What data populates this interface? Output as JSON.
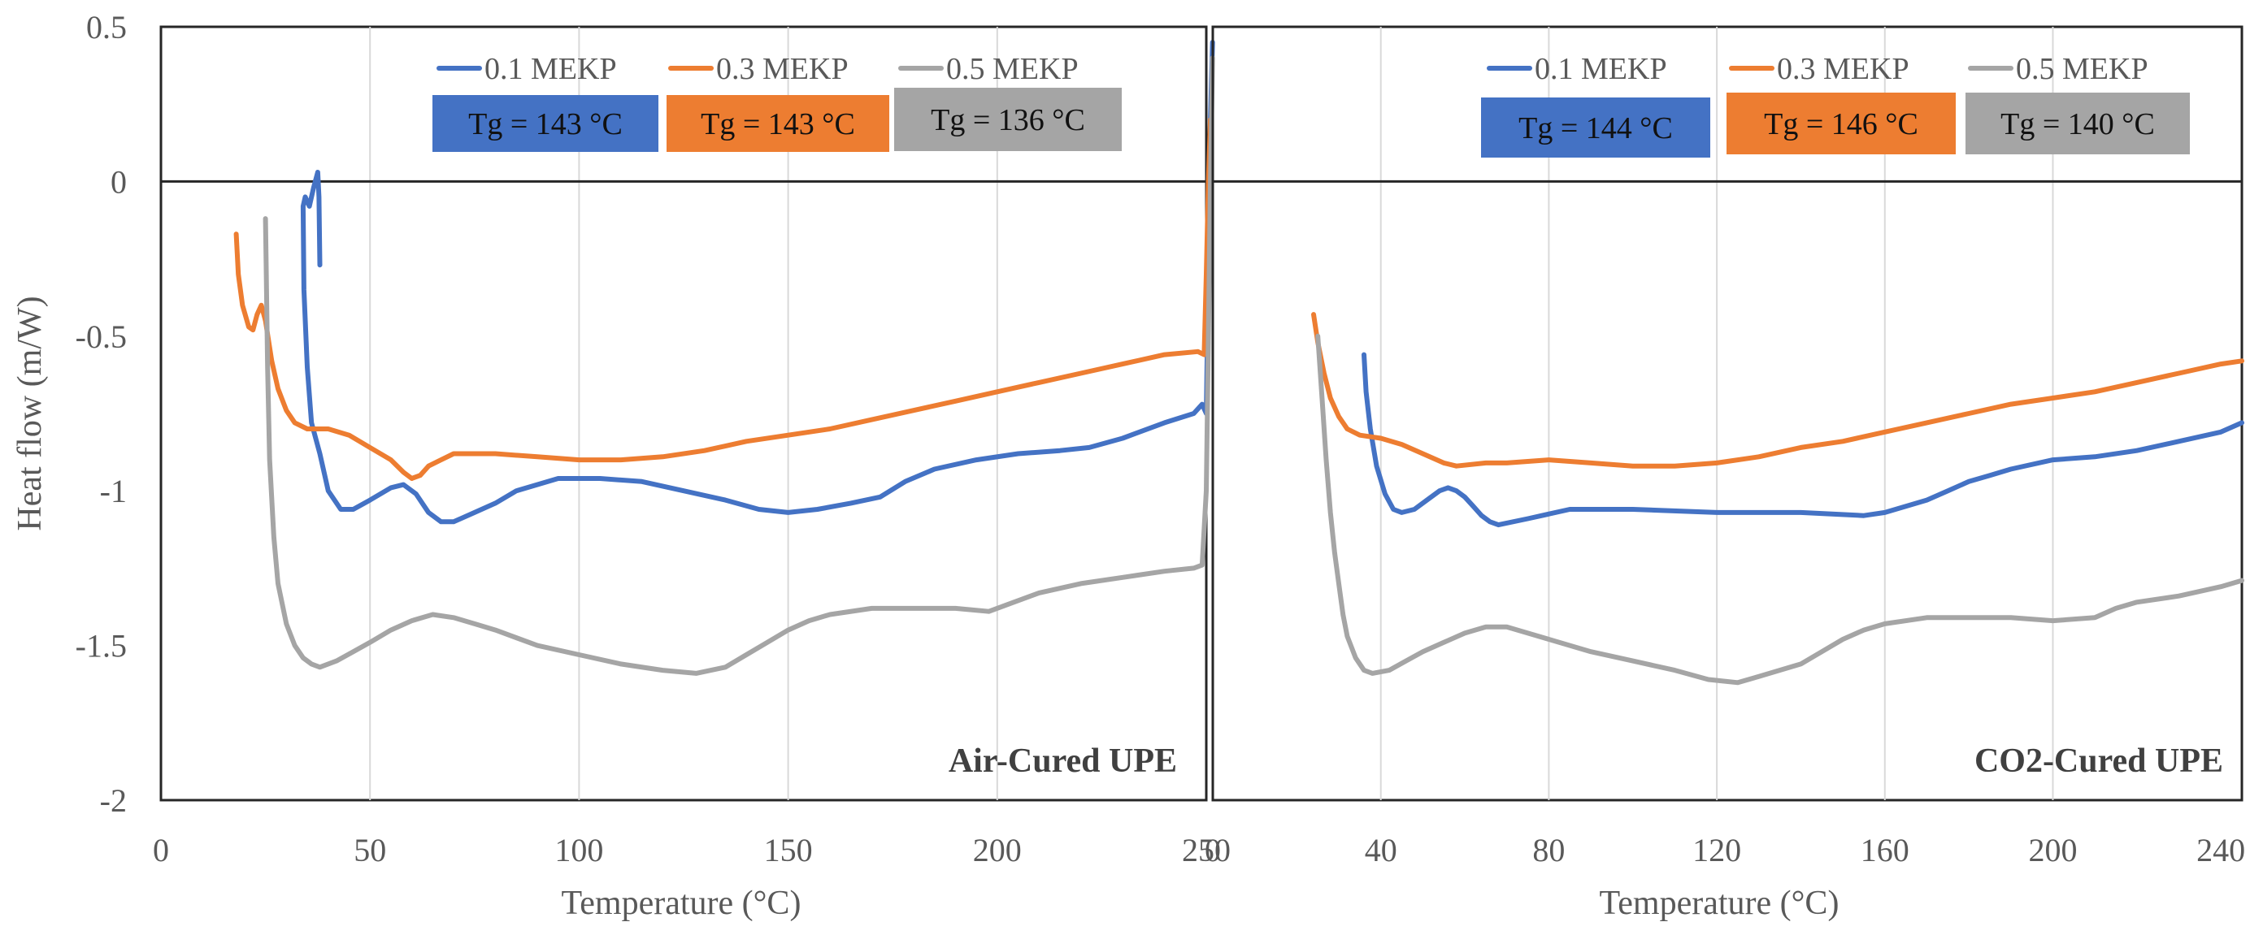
{
  "chart_data": [
    {
      "type": "line",
      "title": "Air-Cured  UPE",
      "xlabel": "Temperature  (°C)",
      "ylabel": "Heat flow (m/W)",
      "xlim": [
        0,
        250
      ],
      "ylim": [
        -2,
        0.5
      ],
      "x_ticks": [
        0,
        50,
        100,
        150,
        200,
        250
      ],
      "x_tick_labels": [
        "0",
        "50",
        "100",
        "150",
        "200",
        "250"
      ],
      "y_ticks": [
        0.5,
        0,
        -0.5,
        -1,
        -1.5,
        -2
      ],
      "y_tick_labels": [
        "0.5",
        "0",
        "-0.5",
        "-1",
        "-1.5",
        "-2"
      ],
      "grid": "vertical",
      "legend_position": "top",
      "series": [
        {
          "name": "0.1 MEKP",
          "color": "#4472C4",
          "points": [
            [
              38,
              -0.27
            ],
            [
              37.8,
              -0.05
            ],
            [
              37.5,
              0.03
            ],
            [
              36.5,
              -0.02
            ],
            [
              35.5,
              -0.08
            ],
            [
              34.5,
              -0.05
            ],
            [
              34,
              -0.08
            ],
            [
              34.2,
              -0.35
            ],
            [
              35,
              -0.6
            ],
            [
              36,
              -0.78
            ],
            [
              38,
              -0.88
            ],
            [
              40,
              -1.0
            ],
            [
              43,
              -1.06
            ],
            [
              46,
              -1.06
            ],
            [
              50,
              -1.03
            ],
            [
              55,
              -0.99
            ],
            [
              58,
              -0.98
            ],
            [
              61,
              -1.01
            ],
            [
              64,
              -1.07
            ],
            [
              67,
              -1.1
            ],
            [
              70,
              -1.1
            ],
            [
              75,
              -1.07
            ],
            [
              80,
              -1.04
            ],
            [
              85,
              -1.0
            ],
            [
              95,
              -0.96
            ],
            [
              105,
              -0.96
            ],
            [
              115,
              -0.97
            ],
            [
              125,
              -1.0
            ],
            [
              135,
              -1.03
            ],
            [
              143,
              -1.06
            ],
            [
              150,
              -1.07
            ],
            [
              157,
              -1.06
            ],
            [
              165,
              -1.04
            ],
            [
              172,
              -1.02
            ],
            [
              178,
              -0.97
            ],
            [
              185,
              -0.93
            ],
            [
              195,
              -0.9
            ],
            [
              205,
              -0.88
            ],
            [
              215,
              -0.87
            ],
            [
              222,
              -0.86
            ],
            [
              230,
              -0.83
            ],
            [
              240,
              -0.78
            ],
            [
              247,
              -0.75
            ],
            [
              249,
              -0.72
            ],
            [
              250,
              -0.75
            ],
            [
              250.5,
              -0.3
            ],
            [
              251,
              0.2
            ],
            [
              251.5,
              0.45
            ]
          ]
        },
        {
          "name": "0.3 MEKP",
          "color": "#ED7D31",
          "points": [
            [
              18,
              -0.17
            ],
            [
              18.5,
              -0.3
            ],
            [
              19.5,
              -0.4
            ],
            [
              21,
              -0.47
            ],
            [
              22,
              -0.48
            ],
            [
              23,
              -0.43
            ],
            [
              24,
              -0.4
            ],
            [
              25,
              -0.45
            ],
            [
              26.5,
              -0.58
            ],
            [
              28,
              -0.67
            ],
            [
              30,
              -0.74
            ],
            [
              32,
              -0.78
            ],
            [
              35,
              -0.8
            ],
            [
              40,
              -0.8
            ],
            [
              45,
              -0.82
            ],
            [
              50,
              -0.86
            ],
            [
              55,
              -0.9
            ],
            [
              58,
              -0.94
            ],
            [
              60,
              -0.96
            ],
            [
              62,
              -0.95
            ],
            [
              64,
              -0.92
            ],
            [
              67,
              -0.9
            ],
            [
              70,
              -0.88
            ],
            [
              80,
              -0.88
            ],
            [
              90,
              -0.89
            ],
            [
              100,
              -0.9
            ],
            [
              110,
              -0.9
            ],
            [
              120,
              -0.89
            ],
            [
              130,
              -0.87
            ],
            [
              140,
              -0.84
            ],
            [
              150,
              -0.82
            ],
            [
              160,
              -0.8
            ],
            [
              170,
              -0.77
            ],
            [
              180,
              -0.74
            ],
            [
              190,
              -0.71
            ],
            [
              200,
              -0.68
            ],
            [
              210,
              -0.65
            ],
            [
              220,
              -0.62
            ],
            [
              230,
              -0.59
            ],
            [
              240,
              -0.56
            ],
            [
              248,
              -0.55
            ],
            [
              249.5,
              -0.56
            ],
            [
              250,
              -0.3
            ],
            [
              250.5,
              0.0
            ],
            [
              251,
              0.2
            ]
          ]
        },
        {
          "name": "0.5 MEKP",
          "color": "#A5A5A5",
          "points": [
            [
              25,
              -0.12
            ],
            [
              25.2,
              -0.3
            ],
            [
              25.5,
              -0.6
            ],
            [
              26,
              -0.9
            ],
            [
              27,
              -1.15
            ],
            [
              28,
              -1.3
            ],
            [
              30,
              -1.43
            ],
            [
              32,
              -1.5
            ],
            [
              34,
              -1.54
            ],
            [
              36,
              -1.56
            ],
            [
              38,
              -1.57
            ],
            [
              42,
              -1.55
            ],
            [
              46,
              -1.52
            ],
            [
              50,
              -1.49
            ],
            [
              55,
              -1.45
            ],
            [
              60,
              -1.42
            ],
            [
              65,
              -1.4
            ],
            [
              70,
              -1.41
            ],
            [
              75,
              -1.43
            ],
            [
              80,
              -1.45
            ],
            [
              90,
              -1.5
            ],
            [
              100,
              -1.53
            ],
            [
              110,
              -1.56
            ],
            [
              120,
              -1.58
            ],
            [
              128,
              -1.59
            ],
            [
              135,
              -1.57
            ],
            [
              140,
              -1.53
            ],
            [
              145,
              -1.49
            ],
            [
              150,
              -1.45
            ],
            [
              155,
              -1.42
            ],
            [
              160,
              -1.4
            ],
            [
              170,
              -1.38
            ],
            [
              180,
              -1.38
            ],
            [
              190,
              -1.38
            ],
            [
              198,
              -1.39
            ],
            [
              202,
              -1.37
            ],
            [
              210,
              -1.33
            ],
            [
              220,
              -1.3
            ],
            [
              230,
              -1.28
            ],
            [
              240,
              -1.26
            ],
            [
              247,
              -1.25
            ],
            [
              249,
              -1.24
            ],
            [
              250,
              -1.0
            ],
            [
              250.5,
              -0.5
            ],
            [
              251,
              0.0
            ],
            [
              251.5,
              0.4
            ]
          ]
        }
      ],
      "tg_labels": [
        {
          "text": "Tg = 143 °C",
          "color": "#4472C4"
        },
        {
          "text": "Tg = 143 °C",
          "color": "#ED7D31"
        },
        {
          "text": "Tg = 136 °C",
          "color": "#A5A5A5"
        }
      ]
    },
    {
      "type": "line",
      "title": "CO2-Cured  UPE",
      "xlabel": "Temperature  (°C)",
      "ylabel": "",
      "xlim": [
        0,
        245
      ],
      "ylim": [
        -2,
        0.5
      ],
      "x_ticks": [
        0,
        40,
        80,
        120,
        160,
        200,
        240
      ],
      "x_tick_labels": [
        "0",
        "40",
        "80",
        "120",
        "160",
        "200",
        "240"
      ],
      "grid": "vertical",
      "legend_position": "top",
      "series": [
        {
          "name": "0.1 MEKP",
          "color": "#4472C4",
          "points": [
            [
              36,
              -0.56
            ],
            [
              36.5,
              -0.68
            ],
            [
              37.5,
              -0.8
            ],
            [
              39,
              -0.92
            ],
            [
              41,
              -1.01
            ],
            [
              43,
              -1.06
            ],
            [
              45,
              -1.07
            ],
            [
              48,
              -1.06
            ],
            [
              51,
              -1.03
            ],
            [
              54,
              -1.0
            ],
            [
              56,
              -0.99
            ],
            [
              58,
              -1.0
            ],
            [
              60,
              -1.02
            ],
            [
              62,
              -1.05
            ],
            [
              64,
              -1.08
            ],
            [
              66,
              -1.1
            ],
            [
              68,
              -1.11
            ],
            [
              75,
              -1.09
            ],
            [
              85,
              -1.06
            ],
            [
              100,
              -1.06
            ],
            [
              120,
              -1.07
            ],
            [
              140,
              -1.07
            ],
            [
              155,
              -1.08
            ],
            [
              160,
              -1.07
            ],
            [
              165,
              -1.05
            ],
            [
              170,
              -1.03
            ],
            [
              175,
              -1.0
            ],
            [
              180,
              -0.97
            ],
            [
              185,
              -0.95
            ],
            [
              190,
              -0.93
            ],
            [
              200,
              -0.9
            ],
            [
              210,
              -0.89
            ],
            [
              220,
              -0.87
            ],
            [
              230,
              -0.84
            ],
            [
              240,
              -0.81
            ],
            [
              245,
              -0.78
            ]
          ]
        },
        {
          "name": "0.3 MEKP",
          "color": "#ED7D31",
          "points": [
            [
              24,
              -0.43
            ],
            [
              25,
              -0.52
            ],
            [
              26.5,
              -0.62
            ],
            [
              28,
              -0.7
            ],
            [
              30,
              -0.76
            ],
            [
              32,
              -0.8
            ],
            [
              35,
              -0.82
            ],
            [
              40,
              -0.83
            ],
            [
              45,
              -0.85
            ],
            [
              50,
              -0.88
            ],
            [
              55,
              -0.91
            ],
            [
              58,
              -0.92
            ],
            [
              65,
              -0.91
            ],
            [
              70,
              -0.91
            ],
            [
              80,
              -0.9
            ],
            [
              90,
              -0.91
            ],
            [
              100,
              -0.92
            ],
            [
              110,
              -0.92
            ],
            [
              120,
              -0.91
            ],
            [
              130,
              -0.89
            ],
            [
              140,
              -0.86
            ],
            [
              150,
              -0.84
            ],
            [
              160,
              -0.81
            ],
            [
              170,
              -0.78
            ],
            [
              180,
              -0.75
            ],
            [
              190,
              -0.72
            ],
            [
              200,
              -0.7
            ],
            [
              210,
              -0.68
            ],
            [
              220,
              -0.65
            ],
            [
              230,
              -0.62
            ],
            [
              240,
              -0.59
            ],
            [
              245,
              -0.58
            ]
          ]
        },
        {
          "name": "0.5 MEKP",
          "color": "#A5A5A5",
          "points": [
            [
              25,
              -0.5
            ],
            [
              26,
              -0.7
            ],
            [
              27,
              -0.9
            ],
            [
              28,
              -1.07
            ],
            [
              29,
              -1.2
            ],
            [
              30,
              -1.3
            ],
            [
              31,
              -1.4
            ],
            [
              32,
              -1.47
            ],
            [
              34,
              -1.54
            ],
            [
              36,
              -1.58
            ],
            [
              38,
              -1.59
            ],
            [
              42,
              -1.58
            ],
            [
              46,
              -1.55
            ],
            [
              50,
              -1.52
            ],
            [
              55,
              -1.49
            ],
            [
              60,
              -1.46
            ],
            [
              65,
              -1.44
            ],
            [
              70,
              -1.44
            ],
            [
              75,
              -1.46
            ],
            [
              80,
              -1.48
            ],
            [
              90,
              -1.52
            ],
            [
              100,
              -1.55
            ],
            [
              110,
              -1.58
            ],
            [
              118,
              -1.61
            ],
            [
              125,
              -1.62
            ],
            [
              130,
              -1.6
            ],
            [
              140,
              -1.56
            ],
            [
              145,
              -1.52
            ],
            [
              150,
              -1.48
            ],
            [
              155,
              -1.45
            ],
            [
              160,
              -1.43
            ],
            [
              170,
              -1.41
            ],
            [
              180,
              -1.41
            ],
            [
              190,
              -1.41
            ],
            [
              200,
              -1.42
            ],
            [
              210,
              -1.41
            ],
            [
              215,
              -1.38
            ],
            [
              220,
              -1.36
            ],
            [
              230,
              -1.34
            ],
            [
              240,
              -1.31
            ],
            [
              245,
              -1.29
            ]
          ]
        }
      ],
      "tg_labels": [
        {
          "text": "Tg = 144 °C",
          "color": "#4472C4"
        },
        {
          "text": "Tg = 146 °C",
          "color": "#ED7D31"
        },
        {
          "text": "Tg = 140 °C",
          "color": "#A5A5A5"
        }
      ]
    }
  ]
}
